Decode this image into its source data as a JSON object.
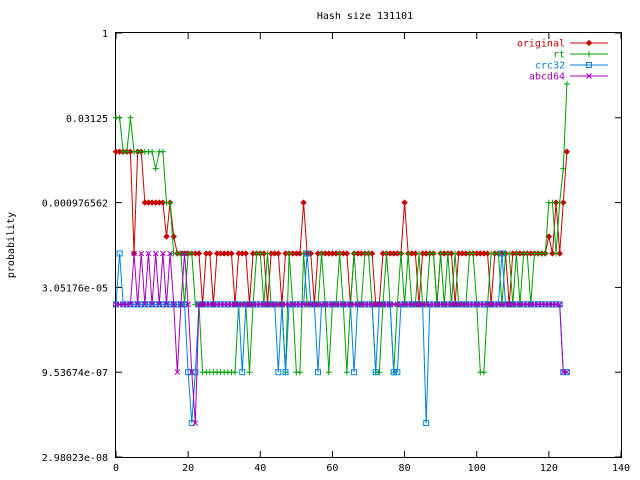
{
  "chart_data": {
    "type": "line",
    "title": "Hash size 131101",
    "xlabel": "",
    "ylabel": "probability",
    "xlim": [
      0,
      140
    ],
    "x_ticks": [
      0,
      20,
      40,
      60,
      80,
      100,
      120,
      140
    ],
    "y_scale": "log2",
    "ylim": [
      2.98023e-08,
      1
    ],
    "y_ticks": [
      {
        "value": 1,
        "label": "1"
      },
      {
        "value": 0.03125,
        "label": "0.03125"
      },
      {
        "value": 0.000976562,
        "label": "0.000976562"
      },
      {
        "value": 3.05176e-05,
        "label": "3.05176e-05"
      },
      {
        "value": 9.53674e-07,
        "label": "9.53674e-07"
      },
      {
        "value": 2.98023e-08,
        "label": "2.98023e-08"
      }
    ],
    "grid": false,
    "legend_position": "top-right",
    "series": [
      {
        "name": "original",
        "color": "#c80000",
        "marker": "diamond",
        "x": [
          0,
          1,
          2,
          3,
          4,
          5,
          6,
          7,
          8,
          9,
          10,
          11,
          12,
          13,
          14,
          15,
          16,
          17,
          18,
          19,
          20,
          21,
          22,
          23,
          24,
          25,
          26,
          27,
          28,
          29,
          30,
          31,
          32,
          33,
          34,
          35,
          36,
          37,
          38,
          39,
          40,
          41,
          42,
          43,
          44,
          45,
          46,
          47,
          48,
          49,
          50,
          51,
          52,
          53,
          54,
          55,
          56,
          57,
          58,
          59,
          60,
          61,
          62,
          63,
          64,
          65,
          66,
          67,
          68,
          69,
          70,
          71,
          72,
          73,
          74,
          75,
          76,
          77,
          78,
          79,
          80,
          81,
          82,
          83,
          84,
          85,
          86,
          87,
          88,
          89,
          90,
          91,
          92,
          93,
          94,
          95,
          96,
          97,
          98,
          99,
          100,
          101,
          102,
          103,
          104,
          105,
          106,
          107,
          108,
          109,
          110,
          111,
          112,
          113,
          114,
          115,
          116,
          117,
          118,
          119,
          120,
          121,
          122,
          123,
          124,
          125
        ],
        "y": [
          0.0078125,
          0.0078125,
          0.0078125,
          0.0078125,
          0.0078125,
          0.00012207,
          0.0078125,
          0.0078125,
          0.000976562,
          0.000976562,
          0.000976562,
          0.000976562,
          0.000976562,
          0.000976562,
          0.000244141,
          0.000976562,
          0.000244141,
          0.00012207,
          0.00012207,
          0.00012207,
          0.00012207,
          0.00012207,
          0.00012207,
          0.00012207,
          1.52588e-05,
          0.00012207,
          0.00012207,
          1.52588e-05,
          0.00012207,
          0.00012207,
          0.00012207,
          0.00012207,
          0.00012207,
          1.52588e-05,
          0.00012207,
          0.00012207,
          0.00012207,
          1.52588e-05,
          0.00012207,
          0.00012207,
          0.00012207,
          0.00012207,
          1.52588e-05,
          0.00012207,
          0.00012207,
          0.00012207,
          1.52588e-05,
          0.00012207,
          0.00012207,
          0.00012207,
          0.00012207,
          0.00012207,
          0.000976562,
          0.00012207,
          0.00012207,
          1.52588e-05,
          0.00012207,
          0.00012207,
          0.00012207,
          0.00012207,
          0.00012207,
          0.00012207,
          0.00012207,
          0.00012207,
          0.00012207,
          1.52588e-05,
          0.00012207,
          0.00012207,
          0.00012207,
          0.00012207,
          0.00012207,
          0.00012207,
          1.52588e-05,
          1.52588e-05,
          0.00012207,
          0.00012207,
          0.00012207,
          0.00012207,
          0.00012207,
          0.00012207,
          0.000976562,
          0.00012207,
          0.00012207,
          0.00012207,
          1.52588e-05,
          0.00012207,
          0.00012207,
          0.00012207,
          0.00012207,
          1.52588e-05,
          0.00012207,
          0.00012207,
          0.00012207,
          0.00012207,
          1.52588e-05,
          0.00012207,
          0.00012207,
          0.00012207,
          0.00012207,
          0.00012207,
          0.00012207,
          0.00012207,
          0.00012207,
          0.00012207,
          1.52588e-05,
          0.00012207,
          0.00012207,
          0.00012207,
          0.00012207,
          1.52588e-05,
          0.00012207,
          0.00012207,
          0.00012207,
          0.00012207,
          0.00012207,
          0.00012207,
          0.00012207,
          0.00012207,
          0.00012207,
          0.00012207,
          0.000244141,
          0.00012207,
          0.000976562,
          0.00012207,
          0.000976562,
          0.0078125
        ]
      },
      {
        "name": "rt",
        "color": "#00a000",
        "marker": "plus",
        "x": [
          0,
          1,
          2,
          3,
          4,
          5,
          6,
          7,
          8,
          9,
          10,
          11,
          12,
          13,
          14,
          15,
          16,
          17,
          18,
          19,
          20,
          21,
          22,
          23,
          24,
          25,
          26,
          27,
          28,
          29,
          30,
          31,
          32,
          33,
          34,
          35,
          36,
          37,
          38,
          39,
          40,
          41,
          42,
          43,
          44,
          45,
          46,
          47,
          48,
          49,
          50,
          51,
          52,
          53,
          54,
          55,
          56,
          57,
          58,
          59,
          60,
          61,
          62,
          63,
          64,
          65,
          66,
          67,
          68,
          69,
          70,
          71,
          72,
          73,
          74,
          75,
          76,
          77,
          78,
          79,
          80,
          81,
          82,
          83,
          84,
          85,
          86,
          87,
          88,
          89,
          90,
          91,
          92,
          93,
          94,
          95,
          96,
          97,
          98,
          99,
          100,
          101,
          102,
          103,
          104,
          105,
          106,
          107,
          108,
          109,
          110,
          111,
          112,
          113,
          114,
          115,
          116,
          117,
          118,
          119,
          120,
          121,
          122,
          123,
          124,
          125
        ],
        "y": [
          0.03125,
          0.03125,
          0.0078125,
          0.0078125,
          0.03125,
          0.0078125,
          0.0078125,
          0.0078125,
          0.0078125,
          0.0078125,
          0.0078125,
          0.00390625,
          0.0078125,
          0.0078125,
          0.000976562,
          0.000976562,
          0.00012207,
          0.00012207,
          0.00012207,
          1.52588e-05,
          0.00012207,
          0.00012207,
          1.52588e-05,
          1.52588e-05,
          9.53674e-07,
          9.53674e-07,
          9.53674e-07,
          9.53674e-07,
          9.53674e-07,
          9.53674e-07,
          9.53674e-07,
          9.53674e-07,
          9.53674e-07,
          9.53674e-07,
          1.52588e-05,
          1.52588e-05,
          1.52588e-05,
          9.53674e-07,
          1.52588e-05,
          0.00012207,
          0.00012207,
          1.52588e-05,
          0.00012207,
          1.52588e-05,
          1.52588e-05,
          1.52588e-05,
          1.52588e-05,
          9.53674e-07,
          0.00012207,
          1.52588e-05,
          9.53674e-07,
          9.53674e-07,
          0.00012207,
          1.52588e-05,
          1.52588e-05,
          1.52588e-05,
          1.52588e-05,
          0.00012207,
          1.52588e-05,
          9.53674e-07,
          1.52588e-05,
          1.52588e-05,
          0.00012207,
          1.52588e-05,
          9.53674e-07,
          1.52588e-05,
          0.00012207,
          1.52588e-05,
          1.52588e-05,
          0.00012207,
          0.00012207,
          1.52588e-05,
          9.53674e-07,
          9.53674e-07,
          1.52588e-05,
          0.00012207,
          1.52588e-05,
          9.53674e-07,
          1.52588e-05,
          0.00012207,
          1.52588e-05,
          0.00012207,
          1.52588e-05,
          1.52588e-05,
          0.00012207,
          1.52588e-05,
          1.52588e-05,
          0.00012207,
          0.00012207,
          1.52588e-05,
          0.00012207,
          1.52588e-05,
          0.00012207,
          1.52588e-05,
          0.00012207,
          1.52588e-05,
          1.52588e-05,
          1.52588e-05,
          0.00012207,
          0.00012207,
          1.52588e-05,
          9.53674e-07,
          9.53674e-07,
          1.52588e-05,
          0.00012207,
          0.00012207,
          0.00012207,
          1.52588e-05,
          0.00012207,
          0.00012207,
          1.52588e-05,
          0.00012207,
          1.52588e-05,
          0.00012207,
          0.00012207,
          1.52588e-05,
          0.00012207,
          0.00012207,
          0.00012207,
          0.00012207,
          0.000976562,
          0.000976562,
          0.00012207,
          0.000976562,
          0.00390625,
          0.125
        ]
      },
      {
        "name": "crc32",
        "color": "#0080e0",
        "marker": "square",
        "x": [
          0,
          1,
          2,
          3,
          4,
          5,
          6,
          7,
          8,
          9,
          10,
          11,
          12,
          13,
          14,
          15,
          16,
          17,
          18,
          19,
          20,
          21,
          22,
          23,
          24,
          25,
          26,
          27,
          28,
          29,
          30,
          31,
          32,
          33,
          34,
          35,
          36,
          37,
          38,
          39,
          40,
          41,
          42,
          43,
          44,
          45,
          46,
          47,
          48,
          49,
          50,
          51,
          52,
          53,
          54,
          55,
          56,
          57,
          58,
          59,
          60,
          61,
          62,
          63,
          64,
          65,
          66,
          67,
          68,
          69,
          70,
          71,
          72,
          73,
          74,
          75,
          76,
          77,
          78,
          79,
          80,
          81,
          82,
          83,
          84,
          85,
          86,
          87,
          88,
          89,
          90,
          91,
          92,
          93,
          94,
          95,
          96,
          97,
          98,
          99,
          100,
          101,
          102,
          103,
          104,
          105,
          106,
          107,
          108,
          109,
          110,
          111,
          112,
          113,
          114,
          115,
          116,
          117,
          118,
          119,
          120,
          121,
          122,
          123,
          124,
          125
        ],
        "y": [
          1.52588e-05,
          0.00012207,
          1.52588e-05,
          1.52588e-05,
          1.52588e-05,
          1.52588e-05,
          1.52588e-05,
          1.52588e-05,
          1.52588e-05,
          1.52588e-05,
          1.52588e-05,
          1.52588e-05,
          1.52588e-05,
          1.52588e-05,
          1.52588e-05,
          1.52588e-05,
          1.52588e-05,
          1.52588e-05,
          1.52588e-05,
          1.52588e-05,
          9.53674e-07,
          1.19209e-07,
          9.53674e-07,
          1.52588e-05,
          1.52588e-05,
          1.52588e-05,
          1.52588e-05,
          1.52588e-05,
          1.52588e-05,
          1.52588e-05,
          1.52588e-05,
          1.52588e-05,
          1.52588e-05,
          1.52588e-05,
          1.52588e-05,
          9.53674e-07,
          1.52588e-05,
          1.52588e-05,
          1.52588e-05,
          1.52588e-05,
          1.52588e-05,
          1.52588e-05,
          1.52588e-05,
          1.52588e-05,
          1.52588e-05,
          9.53674e-07,
          1.52588e-05,
          9.53674e-07,
          1.52588e-05,
          1.52588e-05,
          1.52588e-05,
          1.52588e-05,
          1.52588e-05,
          0.00012207,
          1.52588e-05,
          1.52588e-05,
          9.53674e-07,
          1.52588e-05,
          1.52588e-05,
          1.52588e-05,
          1.52588e-05,
          1.52588e-05,
          1.52588e-05,
          1.52588e-05,
          1.52588e-05,
          1.52588e-05,
          9.53674e-07,
          1.52588e-05,
          1.52588e-05,
          1.52588e-05,
          1.52588e-05,
          1.52588e-05,
          9.53674e-07,
          1.52588e-05,
          1.52588e-05,
          1.52588e-05,
          1.52588e-05,
          9.53674e-07,
          9.53674e-07,
          1.52588e-05,
          1.52588e-05,
          1.52588e-05,
          1.52588e-05,
          1.52588e-05,
          1.52588e-05,
          1.52588e-05,
          1.19209e-07,
          1.52588e-05,
          1.52588e-05,
          1.52588e-05,
          1.52588e-05,
          1.52588e-05,
          1.52588e-05,
          1.52588e-05,
          1.52588e-05,
          1.52588e-05,
          1.52588e-05,
          1.52588e-05,
          1.52588e-05,
          1.52588e-05,
          1.52588e-05,
          1.52588e-05,
          1.52588e-05,
          1.52588e-05,
          1.52588e-05,
          1.52588e-05,
          1.52588e-05,
          0.00012207,
          1.52588e-05,
          1.52588e-05,
          1.52588e-05,
          1.52588e-05,
          1.52588e-05,
          1.52588e-05,
          1.52588e-05,
          1.52588e-05,
          1.52588e-05,
          1.52588e-05,
          1.52588e-05,
          1.52588e-05,
          1.52588e-05,
          1.52588e-05,
          1.52588e-05,
          1.52588e-05,
          9.53674e-07,
          9.53674e-07
        ]
      },
      {
        "name": "abcd64",
        "color": "#a000c0",
        "marker": "cross",
        "x": [
          0,
          1,
          2,
          3,
          4,
          5,
          6,
          7,
          8,
          9,
          10,
          11,
          12,
          13,
          14,
          15,
          16,
          17,
          18,
          19,
          20,
          21,
          22,
          23,
          24,
          25,
          26,
          27,
          28,
          29,
          30,
          31,
          32,
          33,
          34,
          35,
          36,
          37,
          38,
          39,
          40,
          41,
          42,
          43,
          44,
          45,
          46,
          47,
          48,
          49,
          50,
          51,
          52,
          53,
          54,
          55,
          56,
          57,
          58,
          59,
          60,
          61,
          62,
          63,
          64,
          65,
          66,
          67,
          68,
          69,
          70,
          71,
          72,
          73,
          74,
          75,
          76,
          77,
          78,
          79,
          80,
          81,
          82,
          83,
          84,
          85,
          86,
          87,
          88,
          89,
          90,
          91,
          92,
          93,
          94,
          95,
          96,
          97,
          98,
          99,
          100,
          101,
          102,
          103,
          104,
          105,
          106,
          107,
          108,
          109,
          110,
          111,
          112,
          113,
          114,
          115,
          116,
          117,
          118,
          119,
          120,
          121,
          122,
          123,
          124,
          125
        ],
        "y": [
          1.52588e-05,
          1.52588e-05,
          1.52588e-05,
          1.52588e-05,
          1.52588e-05,
          0.00012207,
          1.52588e-05,
          0.00012207,
          1.52588e-05,
          0.00012207,
          1.52588e-05,
          0.00012207,
          1.52588e-05,
          0.00012207,
          1.52588e-05,
          0.00012207,
          1.52588e-05,
          9.53674e-07,
          1.52588e-05,
          0.00012207,
          1.52588e-05,
          9.53674e-07,
          1.19209e-07,
          1.52588e-05,
          1.52588e-05,
          1.52588e-05,
          1.52588e-05,
          1.52588e-05,
          1.52588e-05,
          1.52588e-05,
          1.52588e-05,
          1.52588e-05,
          1.52588e-05,
          1.52588e-05,
          1.52588e-05,
          1.52588e-05,
          1.52588e-05,
          1.52588e-05,
          1.52588e-05,
          1.52588e-05,
          1.52588e-05,
          1.52588e-05,
          1.52588e-05,
          1.52588e-05,
          1.52588e-05,
          1.52588e-05,
          1.52588e-05,
          1.52588e-05,
          1.52588e-05,
          1.52588e-05,
          1.52588e-05,
          1.52588e-05,
          1.52588e-05,
          1.52588e-05,
          1.52588e-05,
          1.52588e-05,
          1.52588e-05,
          1.52588e-05,
          1.52588e-05,
          1.52588e-05,
          1.52588e-05,
          1.52588e-05,
          1.52588e-05,
          1.52588e-05,
          1.52588e-05,
          1.52588e-05,
          1.52588e-05,
          1.52588e-05,
          1.52588e-05,
          1.52588e-05,
          1.52588e-05,
          1.52588e-05,
          1.52588e-05,
          1.52588e-05,
          1.52588e-05,
          1.52588e-05,
          1.52588e-05,
          1.52588e-05,
          1.52588e-05,
          1.52588e-05,
          1.52588e-05,
          1.52588e-05,
          1.52588e-05,
          1.52588e-05,
          1.52588e-05,
          1.52588e-05,
          1.52588e-05,
          1.52588e-05,
          1.52588e-05,
          1.52588e-05,
          1.52588e-05,
          1.52588e-05,
          1.52588e-05,
          1.52588e-05,
          1.52588e-05,
          1.52588e-05,
          1.52588e-05,
          1.52588e-05,
          1.52588e-05,
          1.52588e-05,
          1.52588e-05,
          1.52588e-05,
          1.52588e-05,
          1.52588e-05,
          1.52588e-05,
          1.52588e-05,
          1.52588e-05,
          1.52588e-05,
          1.52588e-05,
          1.52588e-05,
          1.52588e-05,
          1.52588e-05,
          1.52588e-05,
          1.52588e-05,
          1.52588e-05,
          1.52588e-05,
          1.52588e-05,
          1.52588e-05,
          1.52588e-05,
          1.52588e-05,
          1.52588e-05,
          1.52588e-05,
          1.52588e-05,
          1.52588e-05,
          9.53674e-07,
          9.53674e-07
        ]
      }
    ]
  }
}
